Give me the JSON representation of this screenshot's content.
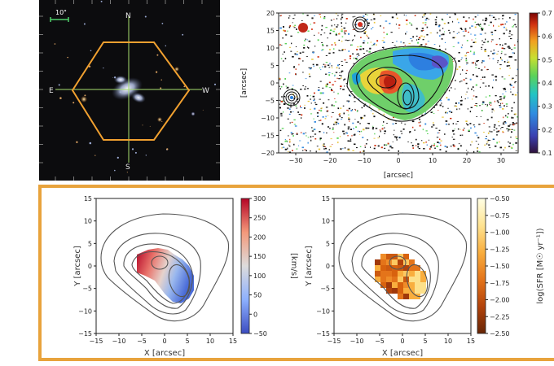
{
  "sdss_image": {
    "scale_label": "10\"",
    "compass": {
      "north": "N",
      "south": "S",
      "east": "E",
      "west": "W"
    },
    "colors": {
      "hexagon": "#f0a030",
      "crosshair": "#a8e070",
      "scalebar": "#4fd06a"
    }
  },
  "top_map": {
    "ylabel": "[arcsec]",
    "xlabel": "[arcsec]",
    "x_ticks": [
      "−30",
      "−20",
      "−10",
      "0",
      "10",
      "20",
      "30"
    ],
    "y_ticks": [
      "20",
      "15",
      "10",
      "5",
      "0",
      "−5",
      "−10",
      "−15",
      "−20"
    ],
    "colorbar_ticks": [
      "0.7",
      "0.6",
      "0.5",
      "0.4",
      "0.3",
      "0.2",
      "0.1"
    ],
    "xlim": [
      -35,
      35
    ],
    "ylim": [
      -20,
      20
    ],
    "clim": [
      0.1,
      0.7
    ],
    "colormap": "jet"
  },
  "velocity_map": {
    "ylabel": "Y [arcsec]",
    "xlabel": "X [arcsec]",
    "x_ticks": [
      "−15",
      "−10",
      "−5",
      "0",
      "5",
      "10",
      "15"
    ],
    "y_ticks": [
      "15",
      "10",
      "5",
      "0",
      "−5",
      "−10",
      "−15"
    ],
    "colorbar_label": "[km/s]",
    "colorbar_ticks": [
      "300",
      "250",
      "200",
      "150",
      "100",
      "50",
      "0",
      "−50"
    ],
    "clim": [
      -50,
      300
    ],
    "colormap": "coolwarm"
  },
  "sfr_map": {
    "ylabel": "Y [arcsec]",
    "xlabel": "X [arcsec]",
    "x_ticks": [
      "−15",
      "−10",
      "−5",
      "0",
      "5",
      "10",
      "15"
    ],
    "y_ticks": [
      "15",
      "10",
      "5",
      "0",
      "−5",
      "−10",
      "−15"
    ],
    "colorbar_label": "log(SFR [M☉ yr⁻¹])",
    "colorbar_ticks": [
      "−0.50",
      "−0.75",
      "−1.00",
      "−1.25",
      "−1.50",
      "−1.75",
      "−2.00",
      "−2.25",
      "−2.50"
    ],
    "clim": [
      -2.5,
      -0.5
    ],
    "colormap": "YlOrBr"
  },
  "frame_color": "#e8a33c"
}
